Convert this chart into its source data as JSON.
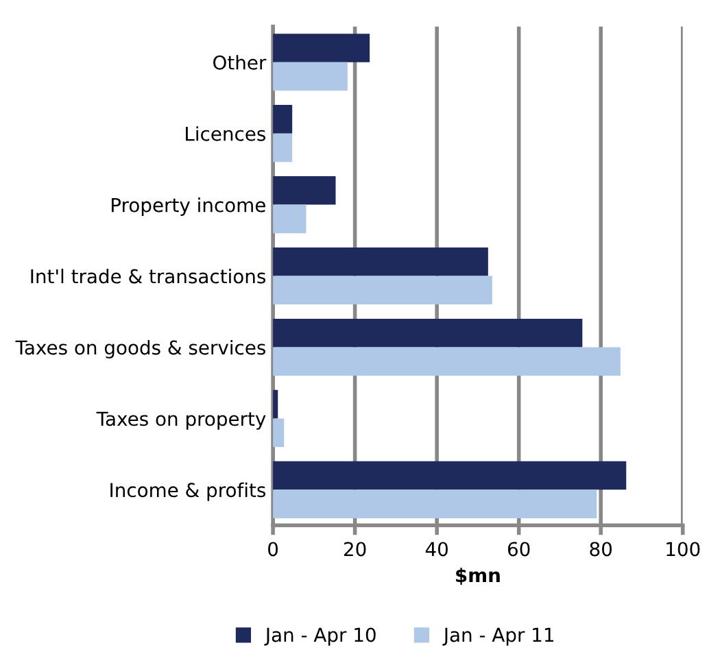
{
  "chart_data": {
    "type": "bar",
    "orientation": "horizontal",
    "xlabel": "$mn",
    "categories": [
      "Other",
      "Licences",
      "Property income",
      "Int'l trade & transactions",
      "Taxes on goods & services",
      "Taxes on property",
      "Income & profits"
    ],
    "series": [
      {
        "name": "Jan - Apr 10",
        "color": "#1f2a5c",
        "values": [
          23.6,
          4.7,
          15.3,
          52.5,
          75.5,
          1.2,
          86.2
        ]
      },
      {
        "name": "Jan - Apr 11",
        "color": "#b0c8e8",
        "values": [
          18.2,
          4.7,
          8.1,
          53.5,
          84.8,
          2.7,
          79.0
        ]
      }
    ],
    "xlim": [
      0,
      100
    ],
    "xticks": [
      0,
      20,
      40,
      60,
      80,
      100
    ],
    "grid": "x",
    "legend": "bottom"
  }
}
